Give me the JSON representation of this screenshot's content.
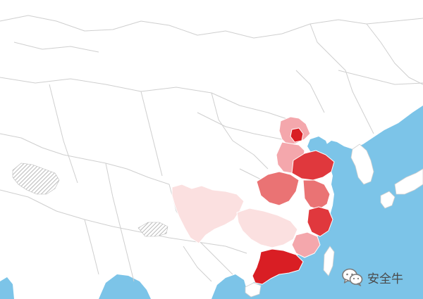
{
  "map": {
    "colors": {
      "sea": "#7cc4e8",
      "land": "#ffffff",
      "border": "#cfcfcf",
      "level_1": "#fbe0e0",
      "level_2": "#f4a7ac",
      "level_3": "#ea7374",
      "level_4": "#e0383d",
      "level_5": "#d91e24",
      "disputed_hatch": "#a9a9a9"
    }
  },
  "watermark": {
    "text": "安全牛",
    "icon": "wechat-icon"
  }
}
